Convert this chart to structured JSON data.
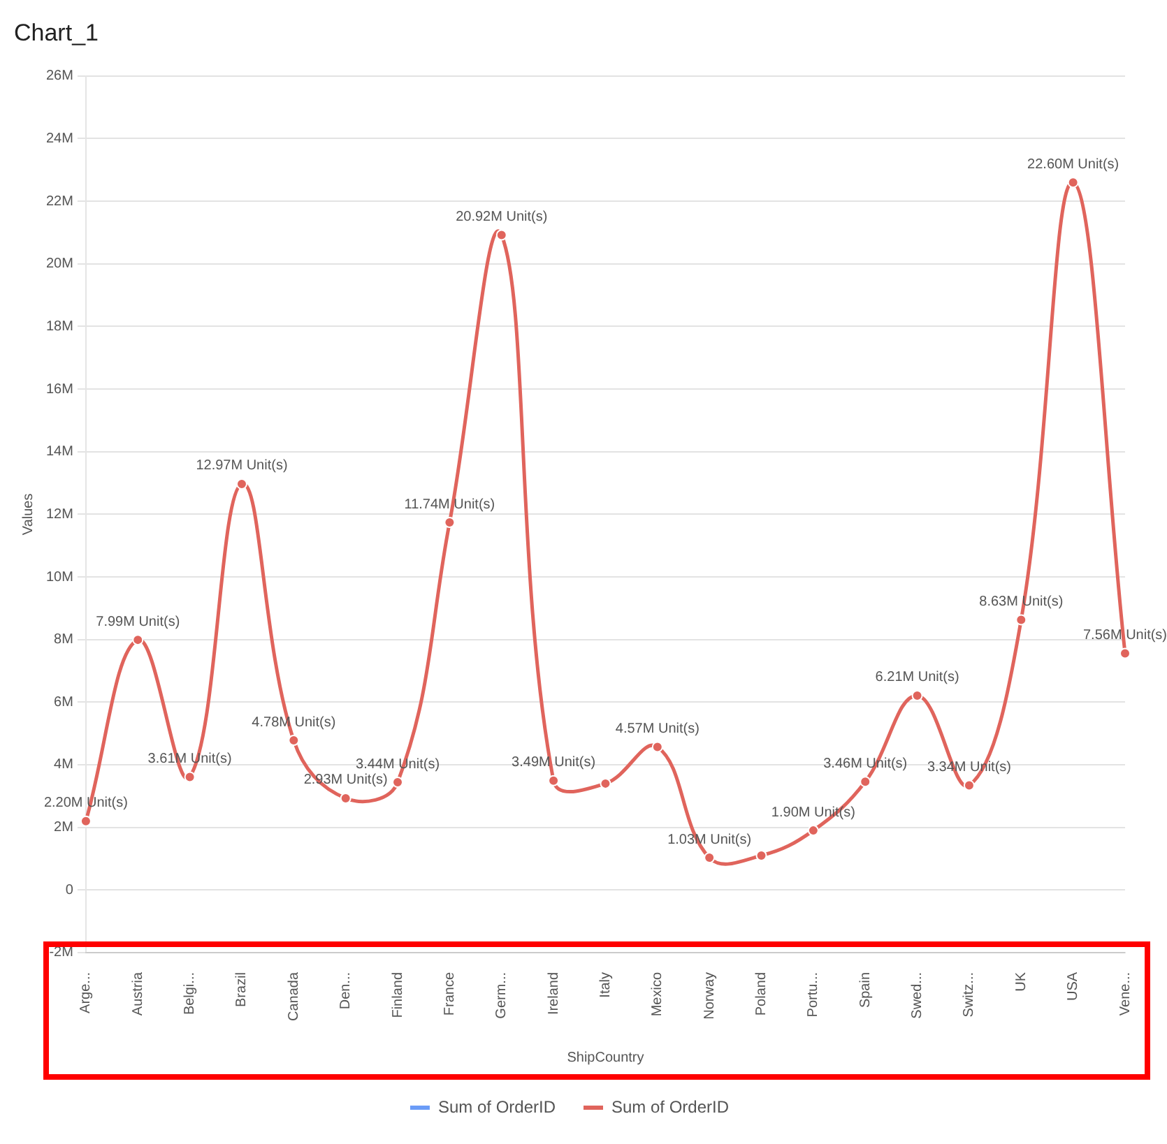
{
  "chart_data": {
    "type": "line",
    "title": "Chart_1",
    "xlabel": "ShipCountry",
    "ylabel": "Values",
    "categories": [
      "Arge...",
      "Austria",
      "Belgi...",
      "Brazil",
      "Canada",
      "Den...",
      "Finland",
      "France",
      "Germ...",
      "Ireland",
      "Italy",
      "Mexico",
      "Norway",
      "Poland",
      "Portu...",
      "Spain",
      "Swed...",
      "Switz...",
      "UK",
      "USA",
      "Vene..."
    ],
    "series": [
      {
        "name": "Sum of OrderID",
        "color": "#6b9cf7",
        "values": [
          null,
          null,
          null,
          null,
          null,
          null,
          null,
          null,
          null,
          null,
          null,
          null,
          null,
          null,
          null,
          null,
          null,
          null,
          null,
          null,
          null
        ]
      },
      {
        "name": "Sum of OrderID",
        "color": "#e0645c",
        "values": [
          2.2,
          7.99,
          3.61,
          12.97,
          4.78,
          2.93,
          3.44,
          11.74,
          20.92,
          3.49,
          3.4,
          4.57,
          1.03,
          1.1,
          1.9,
          3.46,
          6.21,
          3.34,
          8.63,
          22.6,
          7.56
        ],
        "value_labels": [
          "2.20M Unit(s)",
          "7.99M Unit(s)",
          "3.61M Unit(s)",
          "12.97M Unit(s)",
          "4.78M Unit(s)",
          "2.93M Unit(s)",
          "3.44M Unit(s)",
          "11.74M Unit(s)",
          "20.92M Unit(s)",
          "3.49M Unit(s)",
          null,
          "4.57M Unit(s)",
          "1.03M Unit(s)",
          null,
          "1.90M Unit(s)",
          "3.46M Unit(s)",
          "6.21M Unit(s)",
          "3.34M Unit(s)",
          "8.63M Unit(s)",
          "22.60M Unit(s)",
          "7.56M Unit(s)"
        ]
      }
    ],
    "ylim": [
      -2,
      26
    ],
    "yticks": [
      {
        "value": -2,
        "label": "-2M"
      },
      0,
      {
        "value": 2,
        "label": "2M"
      },
      {
        "value": 4,
        "label": "4M"
      },
      {
        "value": 6,
        "label": "6M"
      },
      {
        "value": 8,
        "label": "8M"
      },
      {
        "value": 10,
        "label": "10M"
      },
      {
        "value": 12,
        "label": "12M"
      },
      {
        "value": 14,
        "label": "14M"
      },
      {
        "value": 16,
        "label": "16M"
      },
      {
        "value": 18,
        "label": "18M"
      },
      {
        "value": 20,
        "label": "20M"
      },
      {
        "value": 22,
        "label": "22M"
      },
      {
        "value": 24,
        "label": "24M"
      },
      {
        "value": 26,
        "label": "26M"
      }
    ],
    "grid": "y",
    "legend": "bottom",
    "marker": "circle",
    "line_style": "solid"
  }
}
